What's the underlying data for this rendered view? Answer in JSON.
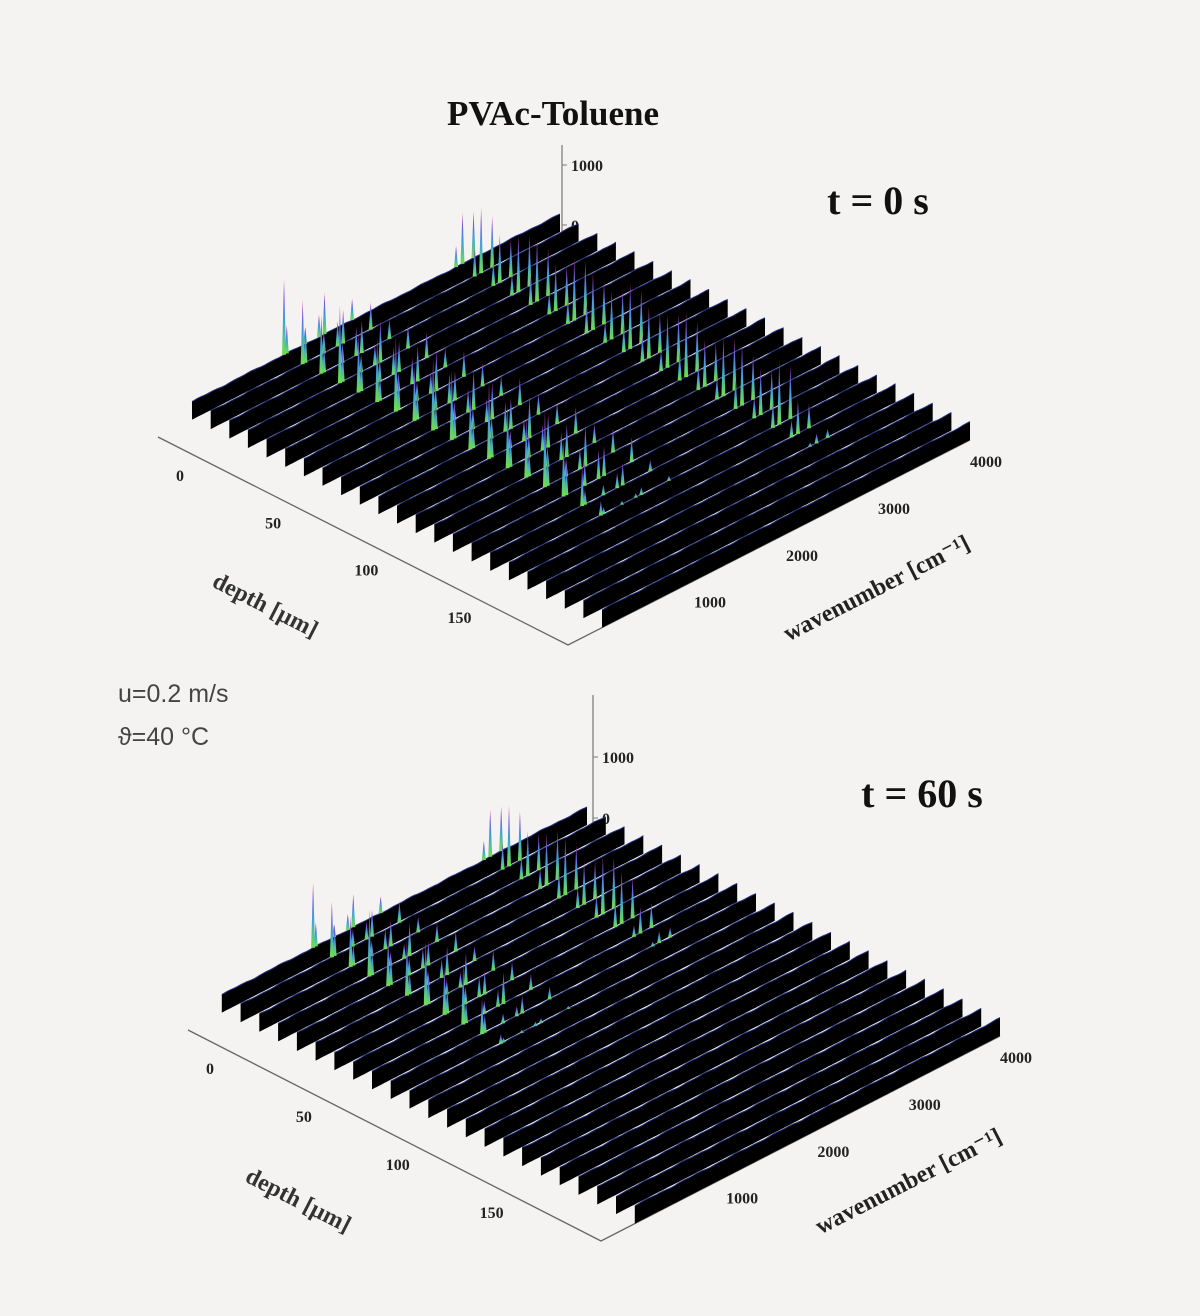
{
  "title": "PVAc-Toluene",
  "conditions": {
    "velocity": "u=0.2 m/s",
    "temperature": "ϑ=40 °C"
  },
  "colors": {
    "background": "#f4f3f1",
    "ribbon": "#000000",
    "baseline": "#26338a",
    "peak_low": "#6fe04a",
    "peak_mid": "#3fa0e0",
    "peak_high": "#e0306a"
  },
  "chart_data": [
    {
      "type": "waterfall",
      "label": "t = 0 s",
      "xlabel": "depth [µm]",
      "ylabel": "wavenumber [cm⁻¹]",
      "xticks": [
        "0",
        "50",
        "100",
        "150"
      ],
      "yticks": [
        "1000",
        "2000",
        "3000",
        "4000"
      ],
      "zticks": [
        "0",
        "1000"
      ],
      "xlim": [
        0,
        220
      ],
      "ylim": [
        0,
        4000
      ],
      "depths": [
        0,
        10,
        20,
        30,
        40,
        50,
        60,
        70,
        80,
        90,
        100,
        110,
        120,
        130,
        140,
        150,
        160,
        170,
        180,
        190,
        200,
        210,
        220
      ],
      "bands": [
        {
          "signal_depth_max": 150,
          "peaks": [
            {
              "wavenumber": 1000,
              "intensity": 1300
            },
            {
              "wavenumber": 1030,
              "intensity": 600
            },
            {
              "wavenumber": 1230,
              "intensity": 400
            },
            {
              "wavenumber": 1380,
              "intensity": 500
            },
            {
              "wavenumber": 1440,
              "intensity": 700
            },
            {
              "wavenumber": 1740,
              "intensity": 450
            }
          ]
        },
        {
          "signal_depth_max": 170,
          "peaks": [
            {
              "wavenumber": 2870,
              "intensity": 500
            },
            {
              "wavenumber": 2940,
              "intensity": 1100
            },
            {
              "wavenumber": 3060,
              "intensity": 900
            }
          ]
        }
      ]
    },
    {
      "type": "waterfall",
      "label": "t = 60 s",
      "xlabel": "depth [µm]",
      "ylabel": "wavenumber [cm⁻¹]",
      "xticks": [
        "0",
        "50",
        "100",
        "150"
      ],
      "yticks": [
        "1000",
        "2000",
        "3000",
        "4000"
      ],
      "zticks": [
        "0",
        "1000"
      ],
      "xlim": [
        0,
        220
      ],
      "ylim": [
        0,
        4000
      ],
      "depths": [
        0,
        10,
        20,
        30,
        40,
        50,
        60,
        70,
        80,
        90,
        100,
        110,
        120,
        130,
        140,
        150,
        160,
        170,
        180,
        190,
        200,
        210,
        220
      ],
      "bands": [
        {
          "signal_depth_max": 80,
          "peaks": [
            {
              "wavenumber": 1000,
              "intensity": 1100
            },
            {
              "wavenumber": 1030,
              "intensity": 500
            },
            {
              "wavenumber": 1230,
              "intensity": 300
            },
            {
              "wavenumber": 1380,
              "intensity": 350
            },
            {
              "wavenumber": 1440,
              "intensity": 550
            },
            {
              "wavenumber": 1740,
              "intensity": 350
            }
          ]
        },
        {
          "signal_depth_max": 70,
          "peaks": [
            {
              "wavenumber": 2870,
              "intensity": 450
            },
            {
              "wavenumber": 2940,
              "intensity": 1000
            },
            {
              "wavenumber": 3060,
              "intensity": 850
            }
          ]
        }
      ]
    }
  ]
}
